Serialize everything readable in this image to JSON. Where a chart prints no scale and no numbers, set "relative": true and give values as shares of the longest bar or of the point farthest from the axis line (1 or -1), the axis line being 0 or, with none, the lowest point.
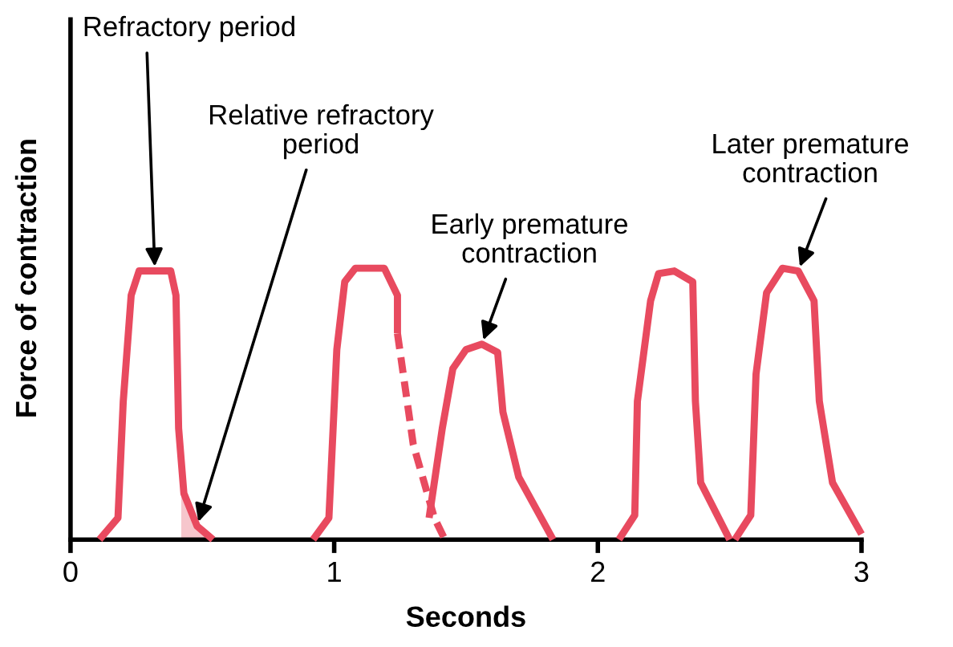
{
  "chart_data": {
    "type": "line",
    "relative": true,
    "xlabel": "Seconds",
    "ylabel": "Force of contraction",
    "xlim": [
      0,
      3
    ],
    "xticks": [
      0,
      1,
      2,
      3
    ],
    "tick_labels": "x",
    "grid": false,
    "legend": false,
    "marker": "none",
    "series": [
      {
        "type": "area",
        "color": "#f6c6cc",
        "x": [
          0.42,
          0.43,
          0.48,
          0.54
        ],
        "values": [
          0.2,
          0.17,
          0.05,
          0
        ]
      },
      {
        "color": "#e84a5f",
        "line_style": "solid",
        "x": [
          0.11,
          0.18,
          0.2,
          0.23,
          0.26,
          0.32,
          0.38,
          0.4,
          0.41,
          0.43,
          0.48,
          0.54
        ],
        "values": [
          0,
          0.08,
          0.51,
          0.9,
          0.99,
          0.99,
          0.99,
          0.9,
          0.41,
          0.17,
          0.05,
          0
        ]
      },
      {
        "color": "#e84a5f",
        "line_style": "solid",
        "x": [
          0.92,
          0.98,
          1.01,
          1.04,
          1.08,
          1.19,
          1.24,
          1.24
        ],
        "values": [
          0,
          0.08,
          0.7,
          0.95,
          1.0,
          1.0,
          0.9,
          0.76
        ]
      },
      {
        "color": "#e84a5f",
        "line_style": "dashed",
        "x": [
          1.24,
          1.3,
          1.38,
          1.42
        ],
        "values": [
          0.76,
          0.35,
          0.08,
          0
        ]
      },
      {
        "color": "#e84a5f",
        "line_style": "solid",
        "x": [
          1.36,
          1.41,
          1.45,
          1.5,
          1.56,
          1.62,
          1.64,
          1.7,
          1.83
        ],
        "values": [
          0.08,
          0.41,
          0.63,
          0.7,
          0.72,
          0.69,
          0.47,
          0.23,
          0
        ]
      },
      {
        "color": "#e84a5f",
        "line_style": "solid",
        "x": [
          2.08,
          2.14,
          2.15,
          2.2,
          2.23,
          2.29,
          2.36,
          2.37,
          2.39,
          2.5
        ],
        "values": [
          0,
          0.09,
          0.51,
          0.88,
          0.98,
          0.99,
          0.95,
          0.51,
          0.21,
          0
        ]
      },
      {
        "color": "#e84a5f",
        "line_style": "solid",
        "x": [
          2.52,
          2.58,
          2.6,
          2.64,
          2.7,
          2.76,
          2.82,
          2.84,
          2.89,
          3.0
        ],
        "values": [
          0,
          0.09,
          0.61,
          0.91,
          1.0,
          0.99,
          0.88,
          0.51,
          0.21,
          0.02
        ]
      }
    ],
    "annotations": [
      {
        "text": "Refractory period",
        "x": 0.32,
        "y": 0.99
      },
      {
        "text": "Relative refractory\nperiod",
        "x": 0.48,
        "y": 0.05
      },
      {
        "text": "Early premature\ncontraction",
        "x": 1.56,
        "y": 0.72
      },
      {
        "text": "Later premature\ncontraction",
        "x": 2.76,
        "y": 0.99
      }
    ]
  }
}
